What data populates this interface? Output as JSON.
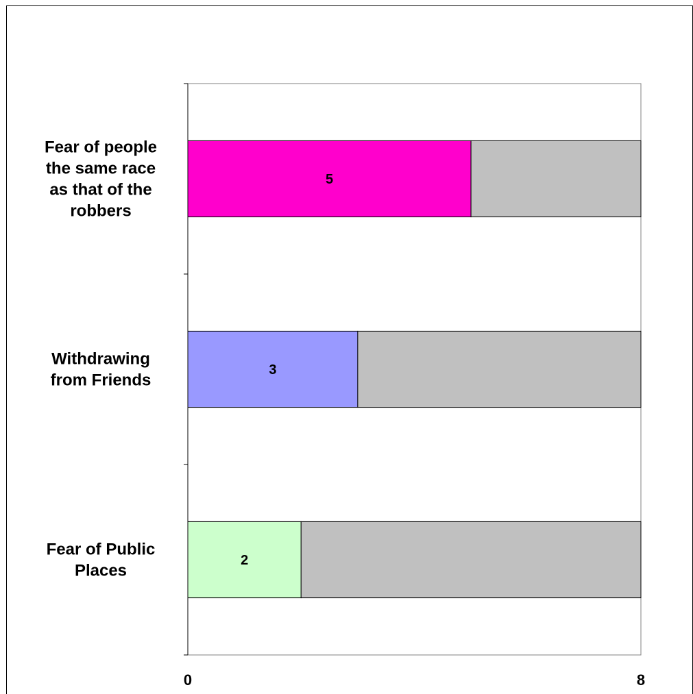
{
  "chart_data": {
    "type": "bar",
    "orientation": "horizontal",
    "stacked": true,
    "categories": [
      "Fear of people the same race as that of the robbers",
      "Withdrawing from Friends",
      "Fear of Public Places"
    ],
    "category_lines": [
      [
        "Fear of people",
        "the same race",
        "as that of the",
        "robbers"
      ],
      [
        "Withdrawing",
        "from Friends"
      ],
      [
        "Fear of Public",
        "Places"
      ]
    ],
    "values": [
      5,
      3,
      2
    ],
    "remainder": [
      3,
      5,
      6
    ],
    "data_labels": [
      "5",
      "3",
      "2"
    ],
    "bar_colors": [
      "#ff00cc",
      "#9999ff",
      "#ccffcc"
    ],
    "remainder_color": "#c0c0c0",
    "xlim": [
      0,
      8
    ],
    "x_tick_labels": [
      "0",
      "8"
    ],
    "title": "",
    "xlabel": "",
    "ylabel": "",
    "grid": false,
    "legend": "none"
  }
}
